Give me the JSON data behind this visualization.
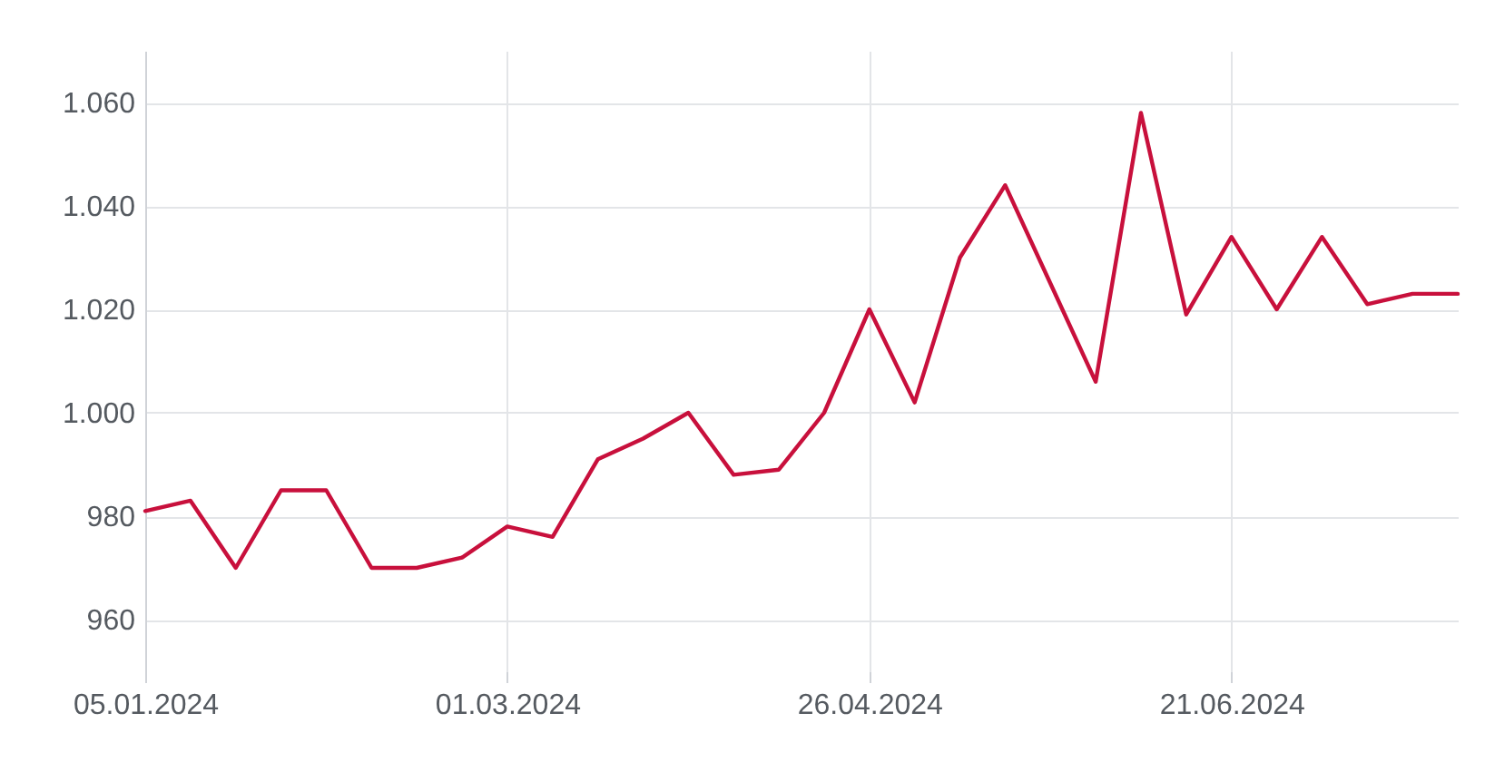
{
  "chart_data": {
    "type": "line",
    "x": [
      "2024-01-05",
      "2024-01-12",
      "2024-01-19",
      "2024-01-26",
      "2024-02-02",
      "2024-02-09",
      "2024-02-16",
      "2024-02-23",
      "2024-03-01",
      "2024-03-08",
      "2024-03-15",
      "2024-03-22",
      "2024-03-29",
      "2024-04-05",
      "2024-04-12",
      "2024-04-19",
      "2024-04-26",
      "2024-05-03",
      "2024-05-10",
      "2024-05-17",
      "2024-05-24",
      "2024-05-31",
      "2024-06-07",
      "2024-06-14",
      "2024-06-21",
      "2024-06-28",
      "2024-07-05",
      "2024-07-12",
      "2024-07-19",
      "2024-07-26"
    ],
    "series": [
      {
        "color": "#c8103c",
        "values": [
          981,
          983,
          970,
          985,
          985,
          970,
          970,
          972,
          978,
          976,
          991,
          995,
          1000,
          988,
          989,
          1000,
          1020,
          1002,
          1030,
          1044,
          1025,
          1006,
          1058,
          1019,
          1034,
          1020,
          1034,
          1021,
          1023,
          1023
        ]
      }
    ],
    "xlim": [
      "2024-01-05",
      "2024-07-26"
    ],
    "xticks": [
      {
        "value": "2024-01-05",
        "label": "05.01.2024"
      },
      {
        "value": "2024-03-01",
        "label": "01.03.2024"
      },
      {
        "value": "2024-04-26",
        "label": "26.04.2024"
      },
      {
        "value": "2024-06-21",
        "label": "21.06.2024"
      }
    ],
    "ylim": [
      950,
      1070
    ],
    "yticks": [
      960,
      980,
      {
        "value": 1000,
        "label": "1.000"
      },
      {
        "value": 1020,
        "label": "1.020"
      },
      {
        "value": 1040,
        "label": "1.040"
      },
      {
        "value": 1060,
        "label": "1.060"
      }
    ],
    "grid": true,
    "line_style": "solid",
    "marker": "none"
  }
}
